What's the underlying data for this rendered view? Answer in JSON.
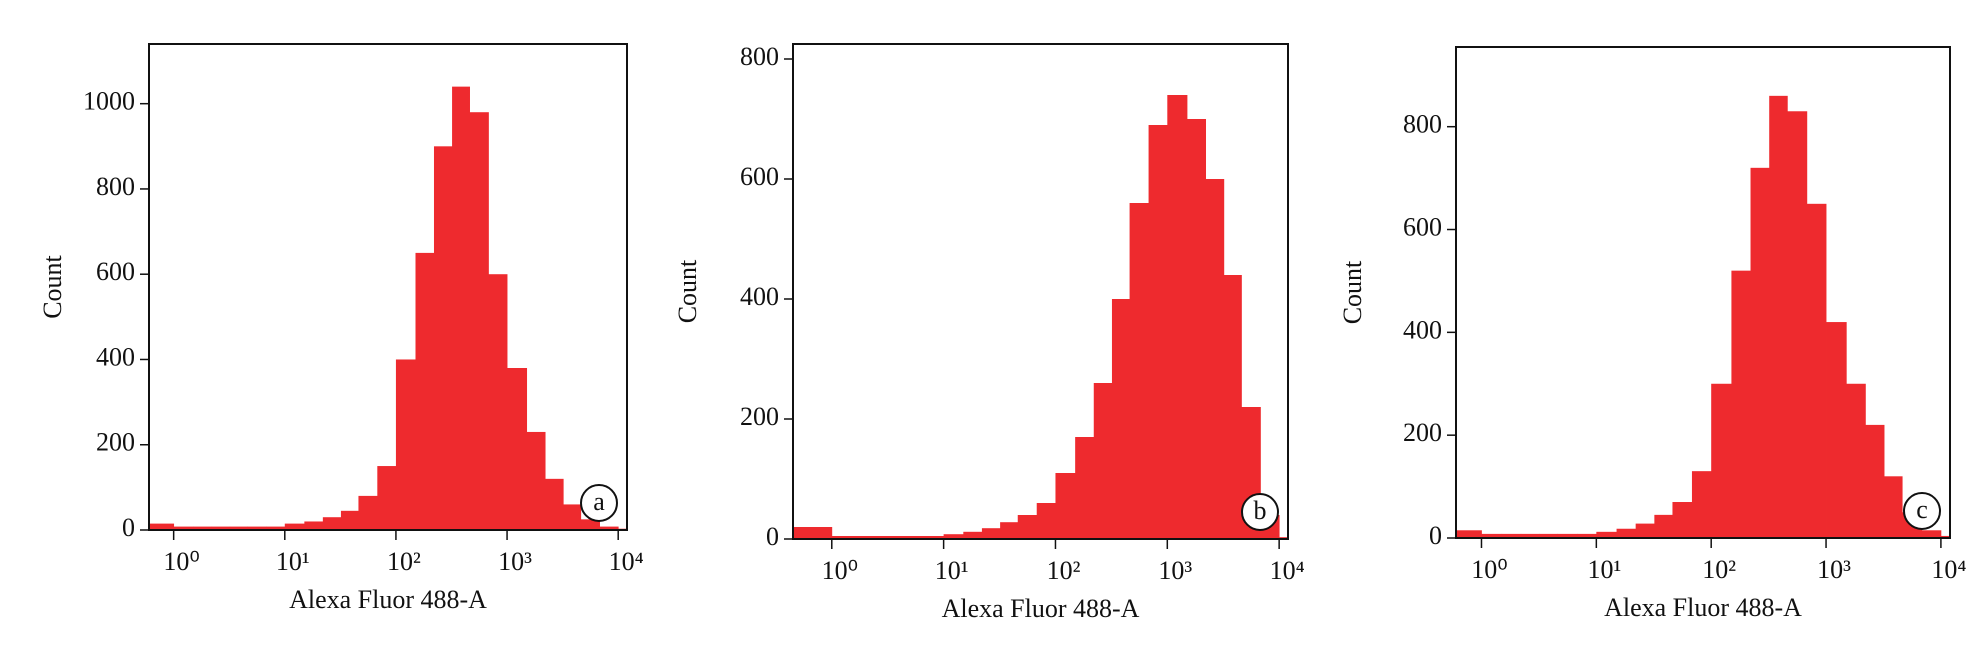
{
  "chart_data": [
    {
      "type": "histogram",
      "xlabel": "Alexa Fluor 488-A",
      "ylabel": "Count",
      "panel_label": "a",
      "color": "#ee2a2e",
      "log_x": true,
      "bins": [
        0.6,
        1,
        1.5,
        2.2,
        3.2,
        4.6,
        6.8,
        10,
        15,
        22,
        32,
        46,
        68,
        100,
        150,
        220,
        320,
        460,
        680,
        1000,
        1500,
        2200,
        3200,
        4600,
        6800,
        10000,
        12000
      ],
      "values": [
        15,
        8,
        8,
        8,
        8,
        8,
        8,
        15,
        20,
        30,
        45,
        80,
        150,
        400,
        650,
        900,
        1040,
        980,
        600,
        380,
        230,
        120,
        60,
        25,
        8,
        3
      ],
      "xlim": [
        0.6,
        12000
      ],
      "ylim": [
        0,
        1140
      ],
      "xticks": [
        {
          "value": 1,
          "label": "10⁰"
        },
        {
          "value": 10,
          "label": "10¹"
        },
        {
          "value": 100,
          "label": "10²"
        },
        {
          "value": 1000,
          "label": "10³"
        },
        {
          "value": 10000,
          "label": "10⁴"
        }
      ],
      "yticks": [
        0,
        200,
        400,
        600,
        800,
        1000
      ]
    },
    {
      "type": "histogram",
      "xlabel": "Alexa Fluor 488-A",
      "ylabel": "Count",
      "panel_label": "b",
      "color": "#ee2a2e",
      "log_x": true,
      "bins": [
        0.45,
        1,
        1.5,
        2.2,
        3.2,
        4.6,
        6.8,
        10,
        15,
        22,
        32,
        46,
        68,
        100,
        150,
        220,
        320,
        460,
        680,
        1000,
        1500,
        2200,
        3200,
        4600,
        6800,
        10000,
        12000
      ],
      "values": [
        20,
        5,
        5,
        5,
        5,
        5,
        5,
        8,
        12,
        18,
        28,
        40,
        60,
        110,
        170,
        260,
        400,
        560,
        690,
        740,
        700,
        600,
        440,
        220,
        40,
        3
      ],
      "xlim": [
        0.45,
        12000
      ],
      "ylim": [
        0,
        825
      ],
      "xticks": [
        {
          "value": 1,
          "label": "10⁰"
        },
        {
          "value": 10,
          "label": "10¹"
        },
        {
          "value": 100,
          "label": "10²"
        },
        {
          "value": 1000,
          "label": "10³"
        },
        {
          "value": 10000,
          "label": "10⁴"
        }
      ],
      "yticks": [
        0,
        200,
        400,
        600,
        800
      ]
    },
    {
      "type": "histogram",
      "xlabel": "Alexa Fluor 488-A",
      "ylabel": "Count",
      "panel_label": "c",
      "color": "#ee2a2e",
      "log_x": true,
      "bins": [
        0.6,
        1,
        1.5,
        2.2,
        3.2,
        4.6,
        6.8,
        10,
        15,
        22,
        32,
        46,
        68,
        100,
        150,
        220,
        320,
        460,
        680,
        1000,
        1500,
        2200,
        3200,
        4600,
        6800,
        10000,
        12000
      ],
      "values": [
        15,
        8,
        8,
        8,
        8,
        8,
        8,
        12,
        18,
        28,
        45,
        70,
        130,
        300,
        520,
        720,
        860,
        830,
        650,
        420,
        300,
        220,
        120,
        50,
        15,
        4
      ],
      "xlim": [
        0.6,
        12000
      ],
      "ylim": [
        0,
        955
      ],
      "xticks": [
        {
          "value": 1,
          "label": "10⁰"
        },
        {
          "value": 10,
          "label": "10¹"
        },
        {
          "value": 100,
          "label": "10²"
        },
        {
          "value": 1000,
          "label": "10³"
        },
        {
          "value": 10000,
          "label": "10⁴"
        }
      ],
      "yticks": [
        0,
        200,
        400,
        600,
        800
      ]
    }
  ]
}
